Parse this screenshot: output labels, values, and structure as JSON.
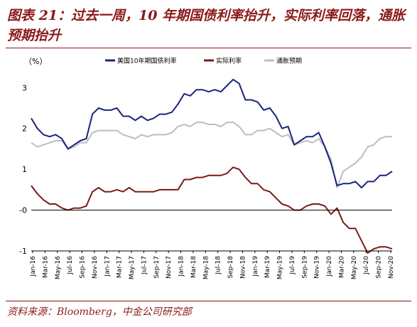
{
  "title": "图表 21：过去一周，10 年期国债利率抬升，实际利率回落，通胀预期抬升",
  "source": "资料来源：Bloomberg，中金公司研究部",
  "chart_data": {
    "type": "line",
    "yunit": "（%）",
    "ylim": [
      -1,
      3.65
    ],
    "yticks": [
      -1,
      0,
      1,
      2,
      3
    ],
    "ytick_labels": [
      "-1",
      "-0",
      "1",
      "2",
      "3"
    ],
    "baseline": 0,
    "legend_position": "top",
    "x_ticks": [
      "Jan-16",
      "Mar-16",
      "May-16",
      "Jul-16",
      "Sep-16",
      "Nov-16",
      "Jan-17",
      "Mar-17",
      "May-17",
      "Jul-17",
      "Sep-17",
      "Nov-17",
      "Jan-18",
      "Mar-18",
      "May-18",
      "Jul-18",
      "Sep-18",
      "Nov-18",
      "Jan-19",
      "Mar-19",
      "May-19",
      "Jul-19",
      "Sep-19",
      "Nov-19",
      "Jan-20",
      "Mar-20",
      "May-20",
      "Jul-20",
      "Sep-20",
      "Nov-20"
    ],
    "x": [
      "Jan-16",
      "Feb-16",
      "Mar-16",
      "Apr-16",
      "May-16",
      "Jun-16",
      "Jul-16",
      "Aug-16",
      "Sep-16",
      "Oct-16",
      "Nov-16",
      "Dec-16",
      "Jan-17",
      "Feb-17",
      "Mar-17",
      "Apr-17",
      "May-17",
      "Jun-17",
      "Jul-17",
      "Aug-17",
      "Sep-17",
      "Oct-17",
      "Nov-17",
      "Dec-17",
      "Jan-18",
      "Feb-18",
      "Mar-18",
      "Apr-18",
      "May-18",
      "Jun-18",
      "Jul-18",
      "Aug-18",
      "Sep-18",
      "Oct-18",
      "Nov-18",
      "Dec-18",
      "Jan-19",
      "Feb-19",
      "Mar-19",
      "Apr-19",
      "May-19",
      "Jun-19",
      "Jul-19",
      "Aug-19",
      "Sep-19",
      "Oct-19",
      "Nov-19",
      "Dec-19",
      "Jan-20",
      "Feb-20",
      "Mar-20",
      "Apr-20",
      "May-20",
      "Jun-20",
      "Jul-20",
      "Aug-20",
      "Sep-20",
      "Oct-20",
      "Nov-20",
      "Dec-20"
    ],
    "series": [
      {
        "name": "美国10年期国债利率",
        "color": "#1a237e",
        "values": [
          2.25,
          2.0,
          1.85,
          1.8,
          1.85,
          1.75,
          1.5,
          1.6,
          1.7,
          1.75,
          2.35,
          2.5,
          2.45,
          2.45,
          2.5,
          2.3,
          2.3,
          2.2,
          2.3,
          2.2,
          2.25,
          2.35,
          2.35,
          2.4,
          2.6,
          2.85,
          2.8,
          2.95,
          2.95,
          2.9,
          2.95,
          2.9,
          3.05,
          3.2,
          3.1,
          2.7,
          2.7,
          2.65,
          2.45,
          2.5,
          2.3,
          2.0,
          2.05,
          1.6,
          1.7,
          1.8,
          1.8,
          1.9,
          1.55,
          1.15,
          0.6,
          0.65,
          0.65,
          0.7,
          0.55,
          0.7,
          0.7,
          0.85,
          0.85,
          0.95
        ]
      },
      {
        "name": "实际利率",
        "color": "#7b1a1a",
        "values": [
          0.6,
          0.4,
          0.25,
          0.15,
          0.15,
          0.05,
          0.0,
          0.05,
          0.05,
          0.1,
          0.45,
          0.55,
          0.45,
          0.45,
          0.5,
          0.45,
          0.55,
          0.45,
          0.45,
          0.45,
          0.45,
          0.5,
          0.5,
          0.5,
          0.5,
          0.75,
          0.75,
          0.8,
          0.8,
          0.85,
          0.85,
          0.85,
          0.9,
          1.05,
          1.0,
          0.8,
          0.65,
          0.65,
          0.5,
          0.45,
          0.3,
          0.15,
          0.1,
          0.0,
          0.0,
          0.1,
          0.15,
          0.15,
          0.1,
          -0.1,
          0.05,
          -0.3,
          -0.45,
          -0.45,
          -0.75,
          -1.05,
          -0.95,
          -0.9,
          -0.9,
          -0.95
        ]
      },
      {
        "name": "通胀预期",
        "color": "#bdbdbd",
        "values": [
          1.65,
          1.55,
          1.6,
          1.65,
          1.7,
          1.7,
          1.5,
          1.55,
          1.65,
          1.65,
          1.9,
          1.95,
          1.95,
          1.95,
          1.95,
          1.85,
          1.8,
          1.75,
          1.85,
          1.8,
          1.85,
          1.85,
          1.85,
          1.9,
          2.05,
          2.1,
          2.05,
          2.15,
          2.15,
          2.1,
          2.1,
          2.05,
          2.15,
          2.15,
          2.05,
          1.85,
          1.85,
          1.95,
          1.95,
          2.0,
          1.9,
          1.8,
          1.85,
          1.6,
          1.65,
          1.7,
          1.65,
          1.75,
          1.55,
          1.25,
          0.55,
          0.95,
          1.05,
          1.15,
          1.3,
          1.55,
          1.6,
          1.75,
          1.8,
          1.8
        ]
      }
    ]
  }
}
